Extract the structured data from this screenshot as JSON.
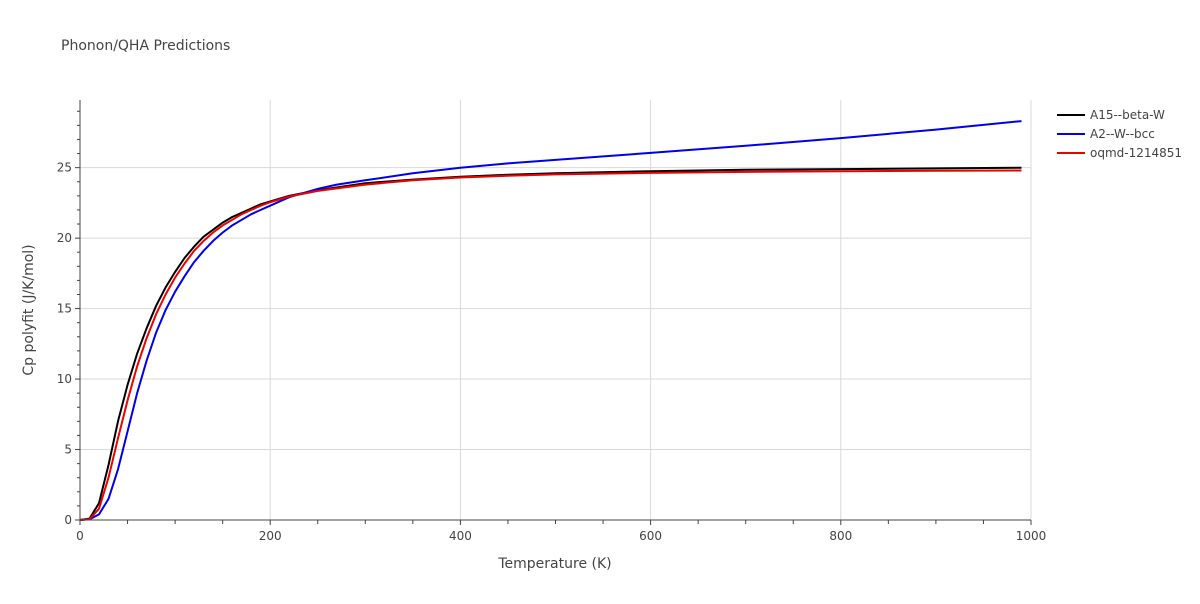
{
  "chart_data": {
    "type": "line",
    "title": "Phonon/QHA Predictions",
    "xlabel": "Temperature (K)",
    "ylabel": "Cp polyfit (J/K/mol)",
    "xlim": [
      0,
      1000
    ],
    "ylim": [
      0,
      29.8
    ],
    "xticks": [
      0,
      200,
      400,
      600,
      800,
      1000
    ],
    "yticks": [
      0,
      5,
      10,
      15,
      20,
      25
    ],
    "grid": true,
    "legend_position": "top-right",
    "series": [
      {
        "name": "A15--beta-W",
        "color": "#000000",
        "x": [
          0,
          10,
          20,
          30,
          40,
          50,
          60,
          70,
          80,
          90,
          100,
          110,
          120,
          130,
          140,
          150,
          160,
          170,
          180,
          190,
          200,
          220,
          250,
          300,
          350,
          400,
          450,
          500,
          600,
          700,
          800,
          900,
          990
        ],
        "y": [
          0,
          0.1,
          1.2,
          3.9,
          7.0,
          9.6,
          11.8,
          13.6,
          15.2,
          16.5,
          17.6,
          18.6,
          19.4,
          20.1,
          20.6,
          21.1,
          21.5,
          21.8,
          22.1,
          22.4,
          22.6,
          23.0,
          23.4,
          23.9,
          24.15,
          24.35,
          24.5,
          24.6,
          24.75,
          24.85,
          24.9,
          24.95,
          25.0
        ]
      },
      {
        "name": "A2--W--bcc",
        "color": "#0000ee",
        "x": [
          0,
          10,
          20,
          30,
          40,
          50,
          60,
          70,
          80,
          90,
          100,
          110,
          120,
          130,
          140,
          150,
          160,
          170,
          180,
          190,
          200,
          220,
          250,
          270,
          300,
          350,
          400,
          450,
          500,
          600,
          700,
          800,
          900,
          990
        ],
        "y": [
          0,
          0.05,
          0.4,
          1.5,
          3.6,
          6.3,
          9.0,
          11.3,
          13.3,
          14.9,
          16.2,
          17.3,
          18.3,
          19.1,
          19.8,
          20.4,
          20.9,
          21.3,
          21.7,
          22.0,
          22.3,
          22.9,
          23.5,
          23.8,
          24.1,
          24.6,
          25.0,
          25.3,
          25.55,
          26.05,
          26.55,
          27.1,
          27.7,
          28.3
        ]
      },
      {
        "name": "oqmd-1214851",
        "color": "#ee0000",
        "x": [
          0,
          10,
          20,
          30,
          40,
          50,
          60,
          70,
          80,
          90,
          100,
          110,
          120,
          130,
          140,
          150,
          160,
          170,
          180,
          190,
          200,
          220,
          250,
          300,
          350,
          400,
          450,
          500,
          600,
          700,
          800,
          900,
          990
        ],
        "y": [
          0,
          0.05,
          0.8,
          3.0,
          5.8,
          8.5,
          10.9,
          12.9,
          14.6,
          16.0,
          17.2,
          18.2,
          19.1,
          19.8,
          20.4,
          20.9,
          21.3,
          21.7,
          22.0,
          22.3,
          22.55,
          22.95,
          23.35,
          23.8,
          24.1,
          24.3,
          24.42,
          24.52,
          24.63,
          24.7,
          24.75,
          24.78,
          24.8
        ]
      }
    ]
  }
}
